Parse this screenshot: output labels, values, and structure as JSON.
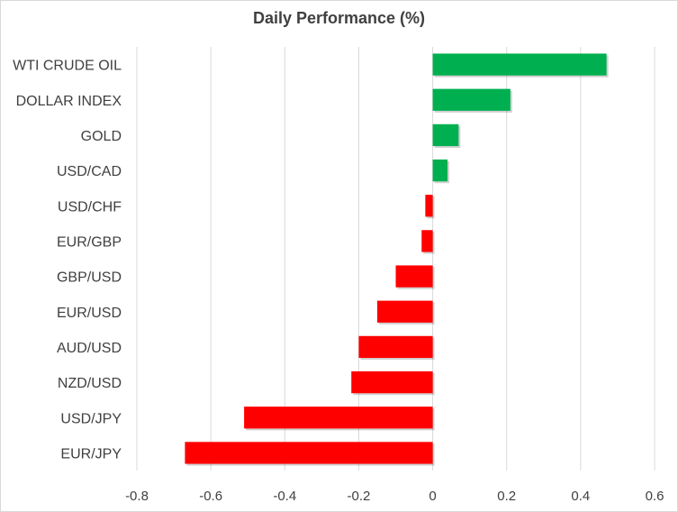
{
  "chart_data": {
    "type": "bar",
    "orientation": "horizontal",
    "title": "Daily Performance  (%)",
    "xlabel": "",
    "ylabel": "",
    "categories": [
      "WTI CRUDE OIL",
      "DOLLAR INDEX",
      "GOLD",
      "USD/CAD",
      "USD/CHF",
      "EUR/GBP",
      "GBP/USD",
      "EUR/USD",
      "AUD/USD",
      "NZD/USD",
      "USD/JPY",
      "EUR/JPY"
    ],
    "values": [
      0.47,
      0.21,
      0.07,
      0.04,
      -0.02,
      -0.03,
      -0.1,
      -0.15,
      -0.2,
      -0.22,
      -0.51,
      -0.67
    ],
    "xlim": [
      -0.8,
      0.6
    ],
    "ticks": [
      -0.8,
      -0.6,
      -0.4,
      -0.2,
      0,
      0.2,
      0.4,
      0.6
    ],
    "tick_labels": [
      "-0.8",
      "-0.6",
      "-0.4",
      "-0.2",
      "0",
      "0.2",
      "0.4",
      "0.6"
    ],
    "grid": true,
    "legend": "none",
    "colors": {
      "positive": "#00b050",
      "negative": "#ff0000",
      "grid": "#d9d9d9",
      "text": "#404040"
    }
  }
}
